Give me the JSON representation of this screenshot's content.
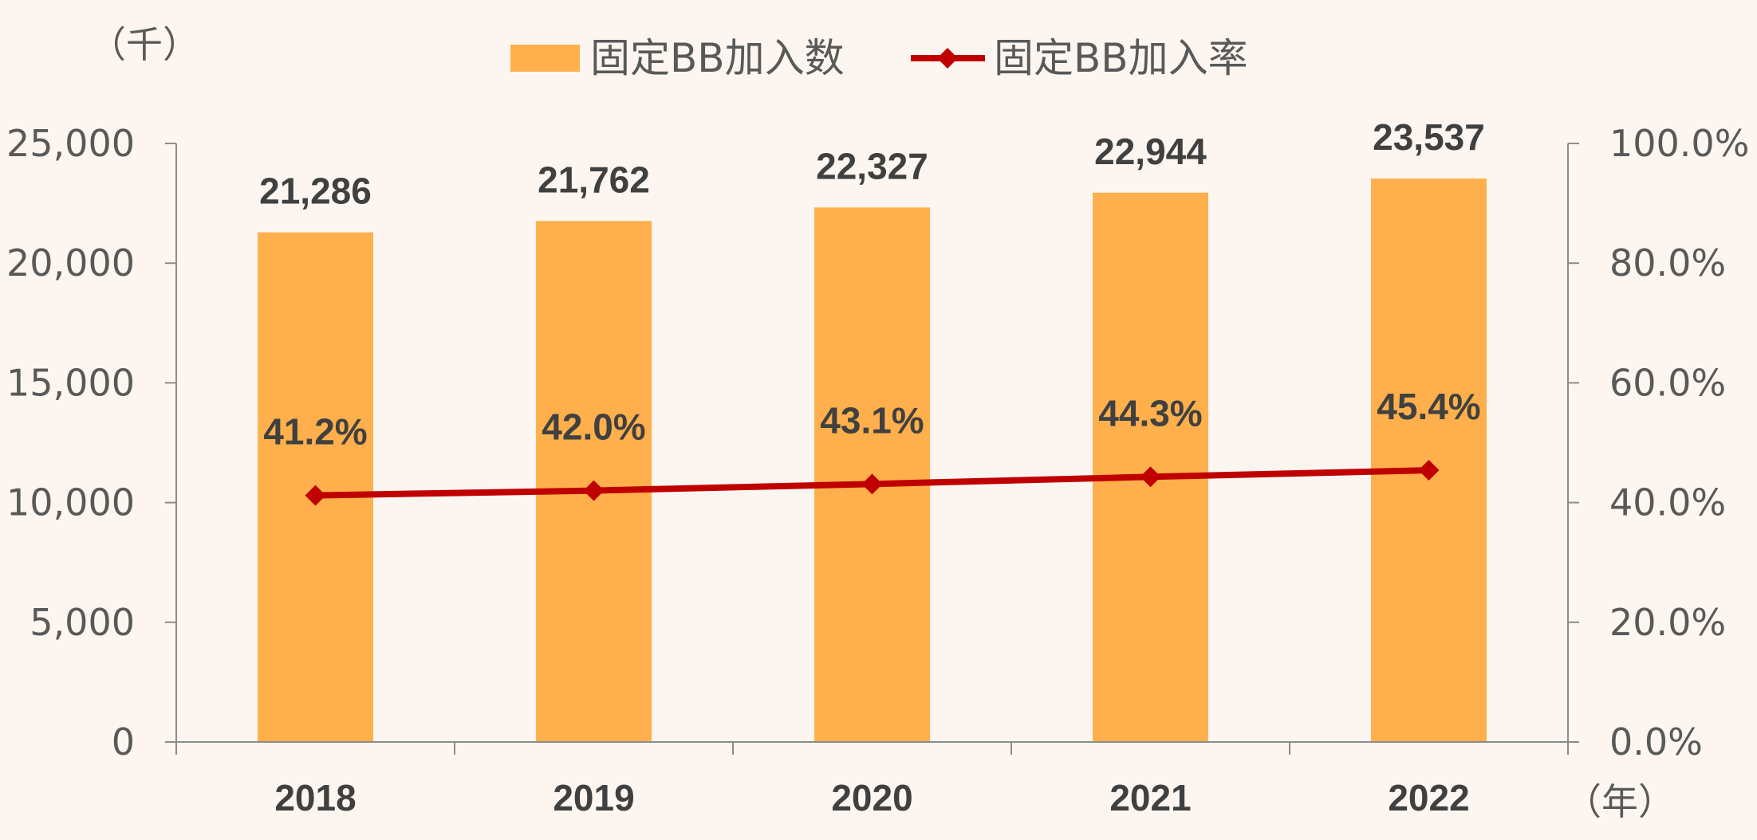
{
  "chart_data": {
    "type": "bar",
    "categories": [
      "2018",
      "2019",
      "2020",
      "2021",
      "2022"
    ],
    "series": [
      {
        "name": "固定BB加入数",
        "type": "bar",
        "axis": "left",
        "color": "#ffb04c",
        "values": [
          21286,
          21762,
          22327,
          22944,
          23537
        ],
        "labels": [
          "21,286",
          "21,762",
          "22,327",
          "22,944",
          "23,537"
        ]
      },
      {
        "name": "固定BB加入率",
        "type": "line",
        "marker": "diamond",
        "axis": "right",
        "color": "#c00000",
        "values": [
          41.2,
          42.0,
          43.1,
          44.3,
          45.4
        ],
        "labels": [
          "41.2%",
          "42.0%",
          "43.1%",
          "44.3%",
          "45.4%"
        ]
      }
    ],
    "y_left": {
      "unit": "（千）",
      "ylim": [
        0,
        25000
      ],
      "ticks": [
        0,
        5000,
        10000,
        15000,
        20000,
        25000
      ],
      "tick_labels": [
        "0",
        "5,000",
        "10,000",
        "15,000",
        "20,000",
        "25,000"
      ]
    },
    "y_right": {
      "ylim": [
        0,
        100
      ],
      "ticks": [
        0,
        20,
        40,
        60,
        80,
        100
      ],
      "tick_labels": [
        "0.0%",
        "20.0%",
        "40.0%",
        "60.0%",
        "80.0%",
        "100.0%"
      ]
    },
    "x_unit": "（年）",
    "grid": false,
    "legend_position": "top-center"
  }
}
